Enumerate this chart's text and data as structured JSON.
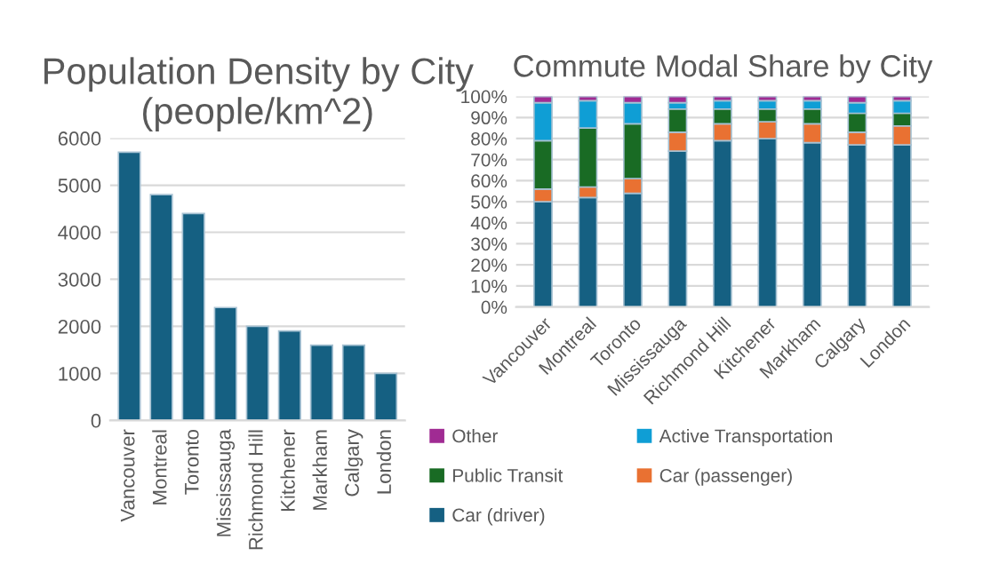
{
  "chart_data": [
    {
      "type": "bar",
      "title": "Population Density by City (people/km^2)",
      "categories": [
        "Vancouver",
        "Montreal",
        "Toronto",
        "Mississauga",
        "Richmond Hill",
        "Kitchener",
        "Markham",
        "Calgary",
        "London"
      ],
      "values": [
        5700,
        4800,
        4400,
        2400,
        2000,
        1900,
        1600,
        1600,
        1000
      ],
      "color": "#156082",
      "ylim": [
        0,
        6000
      ],
      "yticks": [
        0,
        1000,
        2000,
        3000,
        4000,
        5000,
        6000
      ],
      "grid": "y",
      "legend": false
    },
    {
      "type": "bar",
      "stacked": true,
      "title": "Commute Modal Share by City",
      "categories": [
        "Vancouver",
        "Montreal",
        "Toronto",
        "Mississauga",
        "Richmond Hill",
        "Kitchener",
        "Markham",
        "Calgary",
        "London"
      ],
      "ylim": [
        0,
        100
      ],
      "yticks": [
        {
          "value": 0,
          "label": "0%"
        },
        {
          "value": 10,
          "label": "10%"
        },
        {
          "value": 20,
          "label": "20%"
        },
        {
          "value": 30,
          "label": "30%"
        },
        {
          "value": 40,
          "label": "40%"
        },
        {
          "value": 50,
          "label": "50%"
        },
        {
          "value": 60,
          "label": "60%"
        },
        {
          "value": 70,
          "label": "70%"
        },
        {
          "value": 80,
          "label": "80%"
        },
        {
          "value": 90,
          "label": "90%"
        },
        {
          "value": 100,
          "label": "100%"
        }
      ],
      "grid": "y",
      "legend": "bottom",
      "series": [
        {
          "name": "Car (driver)",
          "color": "#156082",
          "values": [
            50,
            52,
            54,
            74,
            79,
            80,
            78,
            77,
            77
          ]
        },
        {
          "name": "Car (passenger)",
          "color": "#e97132",
          "values": [
            6,
            5,
            7,
            9,
            8,
            8,
            9,
            6,
            9
          ]
        },
        {
          "name": "Public Transit",
          "color": "#196b24",
          "values": [
            23,
            28,
            26,
            11,
            7,
            6,
            7,
            9,
            6
          ]
        },
        {
          "name": "Active Transportation",
          "color": "#0f9ed5",
          "values": [
            18,
            13,
            10,
            3,
            4,
            4,
            4,
            5,
            6
          ]
        },
        {
          "name": "Other",
          "color": "#a02b93",
          "values": [
            3,
            2,
            3,
            3,
            2,
            2,
            2,
            3,
            2
          ]
        }
      ]
    }
  ]
}
